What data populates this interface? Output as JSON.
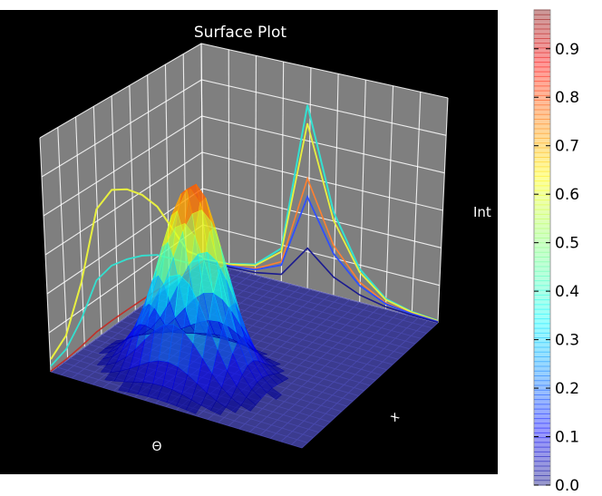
{
  "chart_data": {
    "type": "surface",
    "title": "Surface Plot",
    "xlabel": "x",
    "ylabel": "Θ",
    "zlabel": "Int",
    "zlim": [
      0,
      1
    ],
    "colormap": "jet",
    "colorbar": {
      "range": [
        0,
        0.98
      ],
      "ticks": [
        "0.0",
        "0.1",
        "0.2",
        "0.3",
        "0.4",
        "0.5",
        "0.6",
        "0.7",
        "0.8",
        "0.9"
      ]
    },
    "surface": {
      "peak_intensity": 0.85,
      "shape": "single-peak"
    },
    "projection_profiles": {
      "theta_wall": [
        0.06,
        0.12,
        0.32,
        0.62,
        0.66,
        0.61,
        0.53,
        0.42,
        0.26,
        0.1,
        0.02
      ],
      "x_wall": [
        0.01,
        0.02,
        0.05,
        0.16,
        0.88,
        0.4,
        0.16,
        0.05,
        0.02,
        0.01
      ]
    },
    "grid": true,
    "background": "#000000",
    "pane_color": "#7f7f7f"
  }
}
